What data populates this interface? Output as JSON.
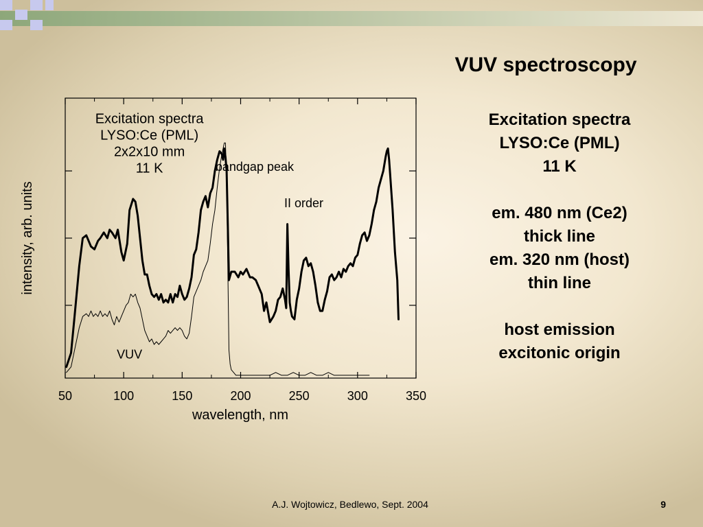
{
  "slide": {
    "title": "VUV spectroscopy",
    "side_text": [
      "Excitation spectra",
      "LYSO:Ce (PML)",
      "11 K",
      "",
      "em. 480 nm (Ce2)",
      "thick line",
      "em. 320 nm (host)",
      "thin line",
      "",
      "host emission",
      "excitonic origin"
    ],
    "footer": "A.J. Wojtowicz, Bedlewo, Sept. 2004",
    "page_number": "9"
  },
  "colors": {
    "strip_squares": "#c7c9ee",
    "strip_gradient_start": "#8da77a",
    "strip_gradient_end": "#ece6d2",
    "curve": "#000000"
  },
  "chart_data": {
    "type": "line",
    "xlabel": "wavelength, nm",
    "ylabel": "intensity, arb. units",
    "xlim": [
      50,
      350
    ],
    "ylim": [
      0,
      1.0
    ],
    "x_ticks": [
      50,
      100,
      150,
      200,
      250,
      300,
      350
    ],
    "y_tick_labels": false,
    "grid": false,
    "annotations": [
      {
        "lines": [
          "Excitation spectra",
          "LYSO:Ce (PML)",
          "2x2x10 mm",
          "11 K"
        ],
        "x": 122,
        "y": 0.91
      },
      {
        "lines": [
          "bandgap peak"
        ],
        "x": 212,
        "y": 0.74
      },
      {
        "lines": [
          "II order"
        ],
        "x": 254,
        "y": 0.61
      },
      {
        "lines": [
          "VUV"
        ],
        "x": 105,
        "y": 0.07
      }
    ],
    "series": [
      {
        "name": "em. 480 nm (Ce2)",
        "style": "thick",
        "x": [
          51,
          55,
          58,
          62,
          65,
          68,
          70,
          72,
          75,
          78,
          80,
          83,
          86,
          88,
          90,
          93,
          95,
          98,
          100,
          103,
          105,
          108,
          110,
          112,
          114,
          116,
          118,
          120,
          122,
          124,
          126,
          128,
          130,
          132,
          134,
          136,
          138,
          140,
          142,
          144,
          146,
          148,
          150,
          152,
          154,
          156,
          158,
          160,
          162,
          164,
          166,
          168,
          170,
          172,
          174,
          176,
          178,
          180,
          182,
          184,
          185,
          186,
          187,
          188,
          189,
          190,
          192,
          195,
          198,
          200,
          202,
          205,
          208,
          210,
          213,
          215,
          218,
          220,
          222,
          225,
          228,
          230,
          232,
          234,
          236,
          238,
          239,
          240,
          241,
          242,
          243,
          244,
          246,
          248,
          250,
          252,
          254,
          256,
          258,
          260,
          262,
          264,
          266,
          268,
          270,
          272,
          274,
          276,
          278,
          280,
          282,
          284,
          286,
          288,
          290,
          292,
          294,
          296,
          298,
          300,
          302,
          304,
          306,
          308,
          310,
          312,
          314,
          316,
          318,
          320,
          322,
          324,
          325,
          326,
          327,
          328,
          330,
          332,
          334,
          335
        ],
        "y": [
          0.04,
          0.09,
          0.22,
          0.4,
          0.5,
          0.51,
          0.49,
          0.47,
          0.46,
          0.49,
          0.5,
          0.52,
          0.5,
          0.53,
          0.52,
          0.5,
          0.53,
          0.45,
          0.42,
          0.48,
          0.6,
          0.64,
          0.63,
          0.58,
          0.5,
          0.42,
          0.37,
          0.37,
          0.33,
          0.3,
          0.29,
          0.3,
          0.28,
          0.3,
          0.27,
          0.28,
          0.27,
          0.3,
          0.27,
          0.3,
          0.29,
          0.33,
          0.3,
          0.28,
          0.29,
          0.32,
          0.36,
          0.44,
          0.46,
          0.52,
          0.6,
          0.63,
          0.65,
          0.61,
          0.66,
          0.68,
          0.74,
          0.78,
          0.81,
          0.8,
          0.78,
          0.82,
          0.79,
          0.74,
          0.55,
          0.35,
          0.38,
          0.38,
          0.36,
          0.38,
          0.37,
          0.39,
          0.36,
          0.36,
          0.35,
          0.33,
          0.3,
          0.24,
          0.27,
          0.2,
          0.22,
          0.24,
          0.28,
          0.29,
          0.32,
          0.28,
          0.25,
          0.55,
          0.39,
          0.27,
          0.24,
          0.22,
          0.21,
          0.28,
          0.32,
          0.38,
          0.42,
          0.43,
          0.4,
          0.41,
          0.38,
          0.33,
          0.27,
          0.24,
          0.24,
          0.28,
          0.31,
          0.36,
          0.37,
          0.35,
          0.36,
          0.38,
          0.36,
          0.39,
          0.38,
          0.4,
          0.41,
          0.4,
          0.43,
          0.44,
          0.48,
          0.51,
          0.52,
          0.49,
          0.51,
          0.55,
          0.6,
          0.63,
          0.68,
          0.71,
          0.74,
          0.79,
          0.81,
          0.82,
          0.78,
          0.72,
          0.6,
          0.45,
          0.35,
          0.21
        ]
      },
      {
        "name": "em. 320 nm (host)",
        "style": "thin",
        "x": [
          51,
          55,
          58,
          62,
          65,
          68,
          70,
          72,
          74,
          76,
          78,
          80,
          82,
          84,
          86,
          88,
          90,
          92,
          94,
          96,
          98,
          100,
          102,
          104,
          106,
          108,
          110,
          112,
          114,
          116,
          118,
          120,
          122,
          124,
          126,
          128,
          130,
          132,
          134,
          136,
          138,
          140,
          142,
          144,
          146,
          148,
          150,
          152,
          154,
          156,
          158,
          160,
          163,
          166,
          168,
          170,
          172,
          174,
          176,
          178,
          180,
          182,
          184,
          185,
          186,
          187,
          188,
          189,
          190,
          191,
          192,
          194,
          196,
          200,
          205,
          210,
          215,
          220,
          225,
          230,
          235,
          240,
          245,
          250,
          255,
          260,
          265,
          270,
          275,
          280,
          285,
          290,
          295,
          300,
          305,
          310
        ],
        "y": [
          0.02,
          0.04,
          0.1,
          0.18,
          0.22,
          0.23,
          0.22,
          0.24,
          0.22,
          0.23,
          0.22,
          0.24,
          0.22,
          0.23,
          0.22,
          0.24,
          0.21,
          0.19,
          0.22,
          0.2,
          0.22,
          0.24,
          0.26,
          0.27,
          0.3,
          0.29,
          0.3,
          0.27,
          0.25,
          0.21,
          0.17,
          0.15,
          0.13,
          0.14,
          0.12,
          0.13,
          0.12,
          0.13,
          0.14,
          0.15,
          0.17,
          0.16,
          0.17,
          0.18,
          0.17,
          0.18,
          0.17,
          0.15,
          0.14,
          0.16,
          0.22,
          0.29,
          0.32,
          0.35,
          0.38,
          0.4,
          0.42,
          0.48,
          0.55,
          0.6,
          0.68,
          0.75,
          0.8,
          0.82,
          0.84,
          0.84,
          0.7,
          0.4,
          0.1,
          0.05,
          0.03,
          0.02,
          0.01,
          0.01,
          0.01,
          0.01,
          0.01,
          0.01,
          0.01,
          0.02,
          0.01,
          0.01,
          0.02,
          0.01,
          0.01,
          0.02,
          0.01,
          0.01,
          0.02,
          0.01,
          0.01,
          0.01,
          0.01,
          0.01,
          0.01,
          0.01
        ]
      }
    ]
  }
}
